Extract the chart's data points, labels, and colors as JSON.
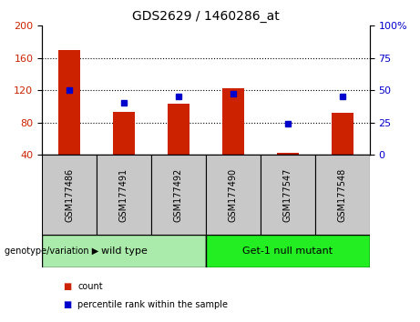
{
  "title": "GDS2629 / 1460286_at",
  "samples": [
    "GSM177486",
    "GSM177491",
    "GSM177492",
    "GSM177490",
    "GSM177547",
    "GSM177548"
  ],
  "counts": [
    170,
    93,
    103,
    122,
    42,
    92
  ],
  "percentiles": [
    50,
    40,
    45,
    47,
    24,
    45
  ],
  "ylim_left": [
    40,
    200
  ],
  "ylim_right": [
    0,
    100
  ],
  "yticks_left": [
    40,
    80,
    120,
    160,
    200
  ],
  "yticks_right": [
    0,
    25,
    50,
    75,
    100
  ],
  "bar_color": "#CC2200",
  "dot_color": "#0000CC",
  "group1_color": "#AAEAAA",
  "group2_color": "#22EE22",
  "cell_color": "#C8C8C8",
  "grid_ticks": [
    80,
    120,
    160
  ],
  "groups": [
    {
      "label": "wild type",
      "indices": [
        0,
        1,
        2
      ]
    },
    {
      "label": "Get-1 null mutant",
      "indices": [
        3,
        4,
        5
      ]
    }
  ],
  "legend_count": "count",
  "legend_percentile": "percentile rank within the sample",
  "genotype_label": "genotype/variation"
}
